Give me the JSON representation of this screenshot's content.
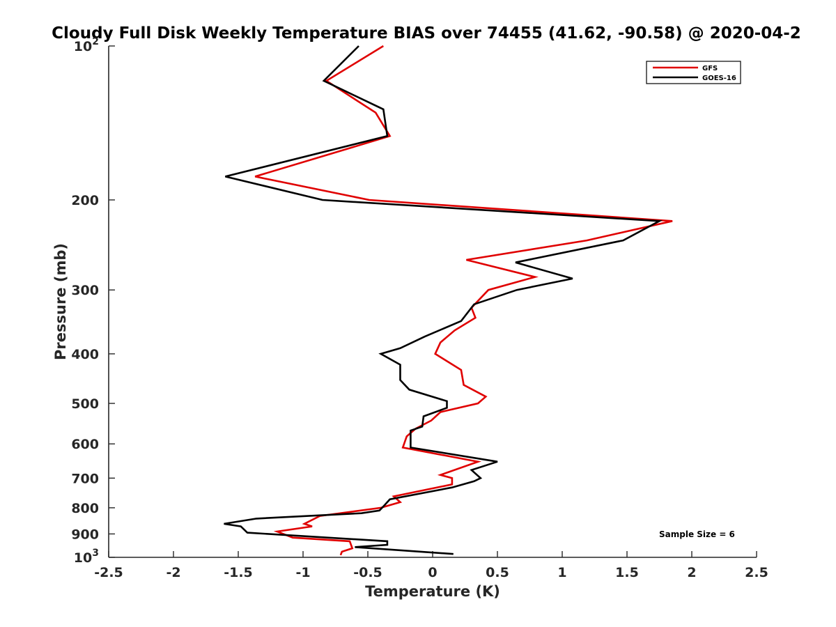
{
  "chart_data": {
    "type": "line",
    "title": "Cloudy Full Disk Weekly Temperature BIAS over 74455 (41.62, -90.58) @ 2020-04-2",
    "xlabel": "Temperature (K)",
    "ylabel": "Pressure (mb)",
    "xlim": [
      -2.5,
      2.5
    ],
    "ylim": [
      100,
      1000
    ],
    "y_scale": "log",
    "y_reversed": true,
    "grid": false,
    "legend_position": "top-right",
    "x_ticks": [
      "-2.5",
      "-2",
      "-1.5",
      "-1",
      "-0.5",
      "0",
      "0.5",
      "1",
      "1.5",
      "2",
      "2.5"
    ],
    "x_tick_values": [
      -2.5,
      -2,
      -1.5,
      -1,
      -0.5,
      0,
      0.5,
      1,
      1.5,
      2,
      2.5
    ],
    "y_ticks": [
      {
        "value": 100,
        "base": "10",
        "exp": "2"
      },
      {
        "value": 200,
        "label": "200"
      },
      {
        "value": 300,
        "label": "300"
      },
      {
        "value": 400,
        "label": "400"
      },
      {
        "value": 500,
        "label": "500"
      },
      {
        "value": 600,
        "label": "600"
      },
      {
        "value": 700,
        "label": "700"
      },
      {
        "value": 800,
        "label": "800"
      },
      {
        "value": 900,
        "label": "900"
      },
      {
        "value": 1000,
        "base": "10",
        "exp": "3"
      }
    ],
    "series": [
      {
        "name": "GFS",
        "color": "#e00000",
        "points": [
          [
            -0.38,
            100
          ],
          [
            -0.82,
            117
          ],
          [
            -0.44,
            135
          ],
          [
            -0.33,
            150
          ],
          [
            -1.37,
            180
          ],
          [
            -0.49,
            200
          ],
          [
            1.85,
            220
          ],
          [
            1.19,
            240
          ],
          [
            0.26,
            262
          ],
          [
            0.79,
            283
          ],
          [
            0.43,
            300
          ],
          [
            0.3,
            325
          ],
          [
            0.33,
            340
          ],
          [
            0.17,
            360
          ],
          [
            0.06,
            380
          ],
          [
            0.02,
            400
          ],
          [
            0.22,
            430
          ],
          [
            0.24,
            460
          ],
          [
            0.41,
            485
          ],
          [
            0.35,
            500
          ],
          [
            0.06,
            520
          ],
          [
            -0.01,
            540
          ],
          [
            -0.13,
            560
          ],
          [
            -0.2,
            580
          ],
          [
            -0.23,
            610
          ],
          [
            0.35,
            650
          ],
          [
            0.06,
            690
          ],
          [
            0.15,
            700
          ],
          [
            0.15,
            720
          ],
          [
            -0.3,
            760
          ],
          [
            -0.25,
            780
          ],
          [
            -0.4,
            800
          ],
          [
            -0.87,
            830
          ],
          [
            -0.99,
            860
          ],
          [
            -0.93,
            870
          ],
          [
            -1.2,
            890
          ],
          [
            -1.08,
            915
          ],
          [
            -0.64,
            930
          ],
          [
            -0.62,
            960
          ],
          [
            -0.7,
            975
          ],
          [
            -0.71,
            990
          ]
        ]
      },
      {
        "name": "GOES-16",
        "color": "#000000",
        "points": [
          [
            -0.57,
            100
          ],
          [
            -0.84,
            117
          ],
          [
            -0.38,
            133
          ],
          [
            -0.35,
            150
          ],
          [
            -1.6,
            180
          ],
          [
            -0.85,
            200
          ],
          [
            1.75,
            220
          ],
          [
            1.47,
            240
          ],
          [
            0.64,
            265
          ],
          [
            1.08,
            285
          ],
          [
            0.65,
            300
          ],
          [
            0.32,
            320
          ],
          [
            0.22,
            345
          ],
          [
            -0.06,
            370
          ],
          [
            -0.25,
            390
          ],
          [
            -0.4,
            400
          ],
          [
            -0.25,
            420
          ],
          [
            -0.25,
            450
          ],
          [
            -0.18,
            470
          ],
          [
            0.11,
            495
          ],
          [
            0.11,
            510
          ],
          [
            -0.07,
            530
          ],
          [
            -0.08,
            555
          ],
          [
            -0.17,
            565
          ],
          [
            -0.17,
            610
          ],
          [
            0.5,
            650
          ],
          [
            0.3,
            675
          ],
          [
            0.37,
            700
          ],
          [
            0.32,
            710
          ],
          [
            0.15,
            730
          ],
          [
            -0.33,
            770
          ],
          [
            -0.37,
            790
          ],
          [
            -0.41,
            810
          ],
          [
            -0.55,
            820
          ],
          [
            -1.36,
            840
          ],
          [
            -1.61,
            860
          ],
          [
            -1.48,
            870
          ],
          [
            -1.43,
            895
          ],
          [
            -0.35,
            930
          ],
          [
            -0.35,
            945
          ],
          [
            -0.6,
            955
          ],
          [
            0.16,
            985
          ]
        ]
      }
    ],
    "annotation": "Sample Size = 6"
  }
}
